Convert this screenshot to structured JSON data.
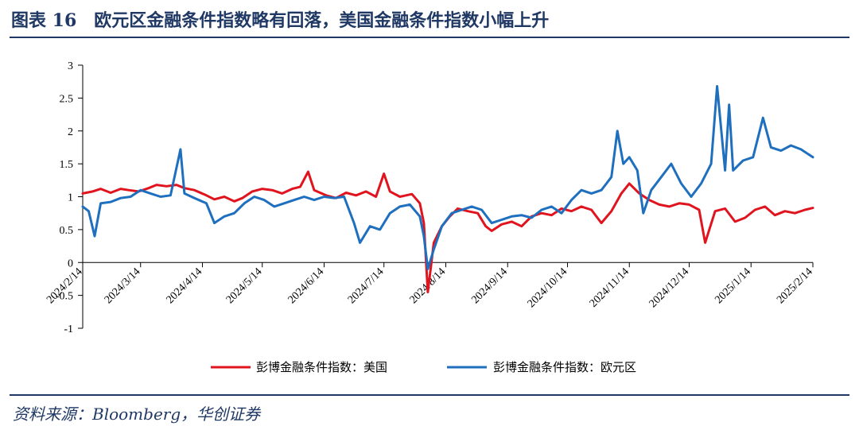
{
  "header": {
    "title": "图表 16　欧元区金融条件指数略有回落，美国金融条件指数小幅上升"
  },
  "footer": {
    "source": "资料来源：Bloomberg，华创证券"
  },
  "chart_data": {
    "type": "line",
    "title": "",
    "xlabel": "",
    "ylabel": "",
    "ylim": [
      -1,
      3
    ],
    "yticks": [
      -1,
      -0.5,
      0,
      0.5,
      1,
      1.5,
      2,
      2.5,
      3
    ],
    "xlim": [
      "2024/2/14",
      "2025/2/14"
    ],
    "xticks": [
      "2024/2/14",
      "2024/3/14",
      "2024/4/14",
      "2024/5/14",
      "2024/6/14",
      "2024/7/14",
      "2024/8/14",
      "2024/9/14",
      "2024/10/14",
      "2024/11/14",
      "2024/12/14",
      "2025/1/14",
      "2025/2/14"
    ],
    "grid": false,
    "legend": "bottom",
    "series": [
      {
        "name": "彭博金融条件指数：美国",
        "color": "#e0141e",
        "points": [
          [
            "2024/2/14",
            1.05
          ],
          [
            "2024/2/19",
            1.08
          ],
          [
            "2024/2/23",
            1.12
          ],
          [
            "2024/2/28",
            1.06
          ],
          [
            "2024/3/4",
            1.12
          ],
          [
            "2024/3/8",
            1.1
          ],
          [
            "2024/3/13",
            1.08
          ],
          [
            "2024/3/18",
            1.13
          ],
          [
            "2024/3/22",
            1.18
          ],
          [
            "2024/3/27",
            1.16
          ],
          [
            "2024/4/1",
            1.18
          ],
          [
            "2024/4/5",
            1.13
          ],
          [
            "2024/4/10",
            1.1
          ],
          [
            "2024/4/16",
            1.02
          ],
          [
            "2024/4/20",
            0.96
          ],
          [
            "2024/4/25",
            1.0
          ],
          [
            "2024/4/30",
            0.93
          ],
          [
            "2024/5/4",
            0.98
          ],
          [
            "2024/5/9",
            1.08
          ],
          [
            "2024/5/14",
            1.12
          ],
          [
            "2024/5/19",
            1.1
          ],
          [
            "2024/5/24",
            1.05
          ],
          [
            "2024/5/29",
            1.12
          ],
          [
            "2024/6/2",
            1.15
          ],
          [
            "2024/6/6",
            1.38
          ],
          [
            "2024/6/9",
            1.1
          ],
          [
            "2024/6/15",
            1.02
          ],
          [
            "2024/6/20",
            0.98
          ],
          [
            "2024/6/25",
            1.06
          ],
          [
            "2024/6/30",
            1.02
          ],
          [
            "2024/7/5",
            1.08
          ],
          [
            "2024/7/10",
            1.0
          ],
          [
            "2024/7/14",
            1.35
          ],
          [
            "2024/7/17",
            1.08
          ],
          [
            "2024/7/22",
            1.0
          ],
          [
            "2024/7/28",
            1.04
          ],
          [
            "2024/8/1",
            0.9
          ],
          [
            "2024/8/3",
            0.6
          ],
          [
            "2024/8/5",
            -0.45
          ],
          [
            "2024/8/8",
            0.3
          ],
          [
            "2024/8/12",
            0.55
          ],
          [
            "2024/8/16",
            0.7
          ],
          [
            "2024/8/20",
            0.82
          ],
          [
            "2024/8/25",
            0.78
          ],
          [
            "2024/8/30",
            0.75
          ],
          [
            "2024/9/3",
            0.55
          ],
          [
            "2024/9/6",
            0.48
          ],
          [
            "2024/9/11",
            0.58
          ],
          [
            "2024/9/16",
            0.62
          ],
          [
            "2024/9/21",
            0.55
          ],
          [
            "2024/9/26",
            0.7
          ],
          [
            "2024/10/1",
            0.75
          ],
          [
            "2024/10/6",
            0.72
          ],
          [
            "2024/10/11",
            0.82
          ],
          [
            "2024/10/16",
            0.78
          ],
          [
            "2024/10/21",
            0.85
          ],
          [
            "2024/10/26",
            0.8
          ],
          [
            "2024/10/31",
            0.6
          ],
          [
            "2024/11/5",
            0.78
          ],
          [
            "2024/11/10",
            1.05
          ],
          [
            "2024/11/14",
            1.2
          ],
          [
            "2024/11/19",
            1.05
          ],
          [
            "2024/11/24",
            0.95
          ],
          [
            "2024/11/29",
            0.88
          ],
          [
            "2024/12/4",
            0.85
          ],
          [
            "2024/12/9",
            0.9
          ],
          [
            "2024/12/14",
            0.88
          ],
          [
            "2024/12/19",
            0.8
          ],
          [
            "2024/12/22",
            0.3
          ],
          [
            "2024/12/27",
            0.78
          ],
          [
            "2025/1/1",
            0.82
          ],
          [
            "2025/1/6",
            0.62
          ],
          [
            "2025/1/11",
            0.68
          ],
          [
            "2025/1/16",
            0.8
          ],
          [
            "2025/1/21",
            0.85
          ],
          [
            "2025/1/26",
            0.72
          ],
          [
            "2025/1/31",
            0.78
          ],
          [
            "2025/2/5",
            0.75
          ],
          [
            "2025/2/10",
            0.8
          ],
          [
            "2025/2/14",
            0.83
          ]
        ]
      },
      {
        "name": "彭博金融条件指数：欧元区",
        "color": "#1f6fbf",
        "points": [
          [
            "2024/2/14",
            0.85
          ],
          [
            "2024/2/17",
            0.78
          ],
          [
            "2024/2/20",
            0.4
          ],
          [
            "2024/2/23",
            0.9
          ],
          [
            "2024/2/28",
            0.92
          ],
          [
            "2024/3/4",
            0.98
          ],
          [
            "2024/3/9",
            1.0
          ],
          [
            "2024/3/14",
            1.1
          ],
          [
            "2024/3/19",
            1.05
          ],
          [
            "2024/3/24",
            1.0
          ],
          [
            "2024/3/29",
            1.02
          ],
          [
            "2024/4/3",
            1.72
          ],
          [
            "2024/4/5",
            1.05
          ],
          [
            "2024/4/10",
            0.98
          ],
          [
            "2024/4/16",
            0.9
          ],
          [
            "2024/4/20",
            0.6
          ],
          [
            "2024/4/25",
            0.7
          ],
          [
            "2024/4/30",
            0.75
          ],
          [
            "2024/5/5",
            0.9
          ],
          [
            "2024/5/10",
            1.0
          ],
          [
            "2024/5/15",
            0.95
          ],
          [
            "2024/5/20",
            0.85
          ],
          [
            "2024/5/25",
            0.9
          ],
          [
            "2024/5/30",
            0.95
          ],
          [
            "2024/6/4",
            1.0
          ],
          [
            "2024/6/9",
            0.95
          ],
          [
            "2024/6/14",
            1.0
          ],
          [
            "2024/6/19",
            0.98
          ],
          [
            "2024/6/24",
            1.0
          ],
          [
            "2024/6/29",
            0.6
          ],
          [
            "2024/7/2",
            0.3
          ],
          [
            "2024/7/7",
            0.55
          ],
          [
            "2024/7/12",
            0.5
          ],
          [
            "2024/7/17",
            0.75
          ],
          [
            "2024/7/22",
            0.85
          ],
          [
            "2024/7/27",
            0.88
          ],
          [
            "2024/8/1",
            0.7
          ],
          [
            "2024/8/3",
            0.4
          ],
          [
            "2024/8/5",
            -0.1
          ],
          [
            "2024/8/8",
            0.2
          ],
          [
            "2024/8/12",
            0.55
          ],
          [
            "2024/8/17",
            0.75
          ],
          [
            "2024/8/22",
            0.8
          ],
          [
            "2024/8/27",
            0.85
          ],
          [
            "2024/9/1",
            0.8
          ],
          [
            "2024/9/6",
            0.6
          ],
          [
            "2024/9/11",
            0.65
          ],
          [
            "2024/9/16",
            0.7
          ],
          [
            "2024/9/21",
            0.72
          ],
          [
            "2024/9/26",
            0.68
          ],
          [
            "2024/10/1",
            0.8
          ],
          [
            "2024/10/6",
            0.85
          ],
          [
            "2024/10/11",
            0.75
          ],
          [
            "2024/10/16",
            0.95
          ],
          [
            "2024/10/21",
            1.1
          ],
          [
            "2024/10/26",
            1.05
          ],
          [
            "2024/10/31",
            1.1
          ],
          [
            "2024/11/5",
            1.3
          ],
          [
            "2024/11/8",
            2.0
          ],
          [
            "2024/11/11",
            1.5
          ],
          [
            "2024/11/14",
            1.6
          ],
          [
            "2024/11/18",
            1.4
          ],
          [
            "2024/11/21",
            0.75
          ],
          [
            "2024/11/25",
            1.1
          ],
          [
            "2024/11/30",
            1.3
          ],
          [
            "2024/12/5",
            1.5
          ],
          [
            "2024/12/10",
            1.2
          ],
          [
            "2024/12/15",
            1.0
          ],
          [
            "2024/12/20",
            1.2
          ],
          [
            "2024/12/25",
            1.5
          ],
          [
            "2024/12/28",
            2.68
          ],
          [
            "2025/1/1",
            1.4
          ],
          [
            "2025/1/3",
            2.4
          ],
          [
            "2025/1/5",
            1.4
          ],
          [
            "2025/1/10",
            1.55
          ],
          [
            "2025/1/15",
            1.6
          ],
          [
            "2025/1/20",
            2.2
          ],
          [
            "2025/1/24",
            1.75
          ],
          [
            "2025/1/29",
            1.7
          ],
          [
            "2025/2/3",
            1.78
          ],
          [
            "2025/2/8",
            1.72
          ],
          [
            "2025/2/14",
            1.6
          ]
        ]
      }
    ]
  }
}
